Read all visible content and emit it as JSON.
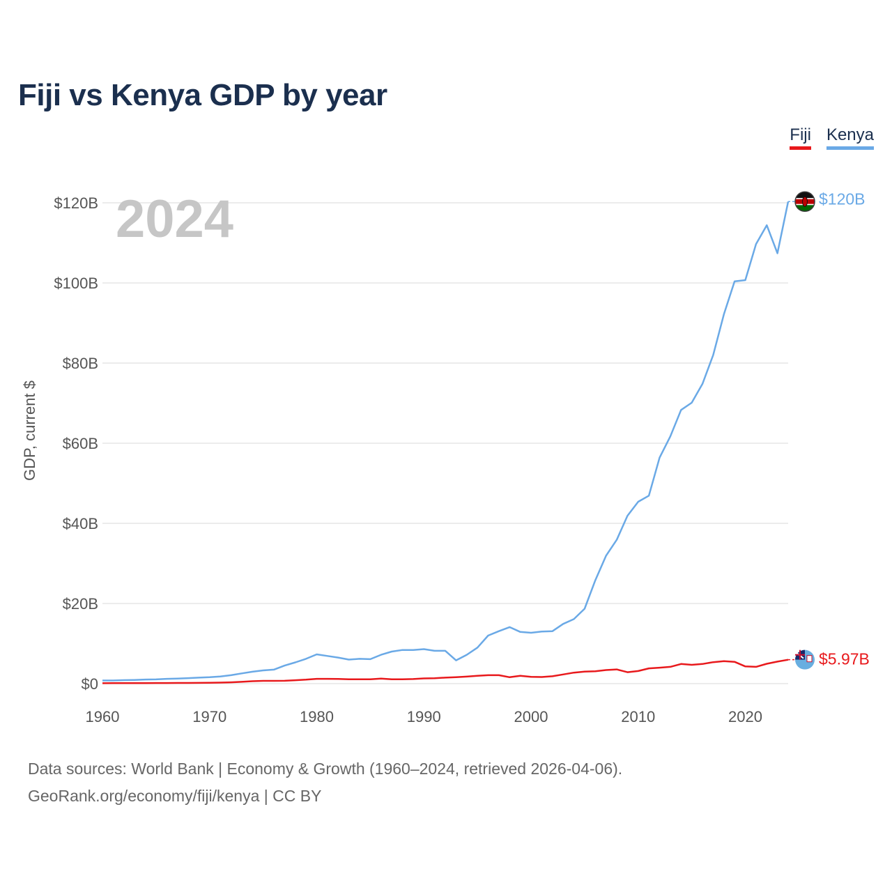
{
  "chart_data": {
    "type": "line",
    "title": "Fiji vs Kenya GDP by year",
    "year_watermark": "2024",
    "xlabel": "",
    "ylabel": "GDP, current $",
    "xlim": [
      1960,
      2024
    ],
    "ylim": [
      0,
      120
    ],
    "x_ticks": [
      {
        "value": 1960,
        "label": "1960"
      },
      {
        "value": 1970,
        "label": "1970"
      },
      {
        "value": 1980,
        "label": "1980"
      },
      {
        "value": 1990,
        "label": "1990"
      },
      {
        "value": 2000,
        "label": "2000"
      },
      {
        "value": 2010,
        "label": "2010"
      },
      {
        "value": 2020,
        "label": "2020"
      }
    ],
    "y_ticks": [
      {
        "value": 0,
        "label": "$0"
      },
      {
        "value": 20,
        "label": "$20B"
      },
      {
        "value": 40,
        "label": "$40B"
      },
      {
        "value": 60,
        "label": "$60B"
      },
      {
        "value": 80,
        "label": "$80B"
      },
      {
        "value": 100,
        "label": "$100B"
      },
      {
        "value": 120,
        "label": "$120B"
      }
    ],
    "grid": true,
    "legend_position": "top-right",
    "series": [
      {
        "name": "Fiji",
        "color": "#e8191c",
        "end_label": "$5.97B",
        "flag_icon": "fiji-flag-icon",
        "x": [
          1960,
          1961,
          1962,
          1963,
          1964,
          1965,
          1966,
          1967,
          1968,
          1969,
          1970,
          1971,
          1972,
          1973,
          1974,
          1975,
          1976,
          1977,
          1978,
          1979,
          1980,
          1981,
          1982,
          1983,
          1984,
          1985,
          1986,
          1987,
          1988,
          1989,
          1990,
          1991,
          1992,
          1993,
          1994,
          1995,
          1996,
          1997,
          1998,
          1999,
          2000,
          2001,
          2002,
          2003,
          2004,
          2005,
          2006,
          2007,
          2008,
          2009,
          2010,
          2011,
          2012,
          2013,
          2014,
          2015,
          2016,
          2017,
          2018,
          2019,
          2020,
          2021,
          2022,
          2023,
          2024
        ],
        "values": [
          0.11,
          0.12,
          0.12,
          0.13,
          0.14,
          0.15,
          0.16,
          0.17,
          0.18,
          0.2,
          0.22,
          0.26,
          0.33,
          0.45,
          0.6,
          0.7,
          0.7,
          0.72,
          0.85,
          1.0,
          1.2,
          1.2,
          1.17,
          1.1,
          1.1,
          1.1,
          1.25,
          1.1,
          1.1,
          1.15,
          1.3,
          1.35,
          1.5,
          1.6,
          1.75,
          1.97,
          2.1,
          2.1,
          1.6,
          1.95,
          1.7,
          1.65,
          1.85,
          2.3,
          2.75,
          3.0,
          3.1,
          3.4,
          3.55,
          2.85,
          3.15,
          3.8,
          3.99,
          4.2,
          4.9,
          4.7,
          4.9,
          5.35,
          5.6,
          5.45,
          4.3,
          4.2,
          4.95,
          5.5,
          5.97
        ]
      },
      {
        "name": "Kenya",
        "color": "#6aa9e6",
        "end_label": "$120B",
        "flag_icon": "kenya-flag-icon",
        "x": [
          1960,
          1961,
          1962,
          1963,
          1964,
          1965,
          1966,
          1967,
          1968,
          1969,
          1970,
          1971,
          1972,
          1973,
          1974,
          1975,
          1976,
          1977,
          1978,
          1979,
          1980,
          1981,
          1982,
          1983,
          1984,
          1985,
          1986,
          1987,
          1988,
          1989,
          1990,
          1991,
          1992,
          1993,
          1994,
          1995,
          1996,
          1997,
          1998,
          1999,
          2000,
          2001,
          2002,
          2003,
          2004,
          2005,
          2006,
          2007,
          2008,
          2009,
          2010,
          2011,
          2012,
          2013,
          2014,
          2015,
          2016,
          2017,
          2018,
          2019,
          2020,
          2021,
          2022,
          2023,
          2024
        ],
        "values": [
          0.79,
          0.79,
          0.87,
          0.93,
          1.02,
          1.06,
          1.2,
          1.27,
          1.38,
          1.49,
          1.6,
          1.78,
          2.11,
          2.55,
          2.98,
          3.3,
          3.5,
          4.5,
          5.3,
          6.2,
          7.3,
          6.9,
          6.5,
          6.0,
          6.2,
          6.1,
          7.2,
          8.0,
          8.4,
          8.4,
          8.6,
          8.2,
          8.2,
          5.8,
          7.2,
          9.0,
          12.0,
          13.1,
          14.1,
          12.9,
          12.7,
          13.0,
          13.1,
          14.9,
          16.1,
          18.7,
          25.8,
          31.9,
          35.9,
          41.9,
          45.4,
          46.9,
          56.4,
          61.7,
          68.3,
          70.1,
          74.8,
          82.0,
          92.2,
          100.4,
          100.7,
          109.7,
          114.4,
          107.4,
          120.3
        ]
      }
    ]
  },
  "footer": {
    "source_line1": "Data sources: World Bank | Economy & Growth (1960–2024, retrieved 2026-04-06).",
    "source_line2": "GeoRank.org/economy/fiji/kenya | CC BY"
  }
}
